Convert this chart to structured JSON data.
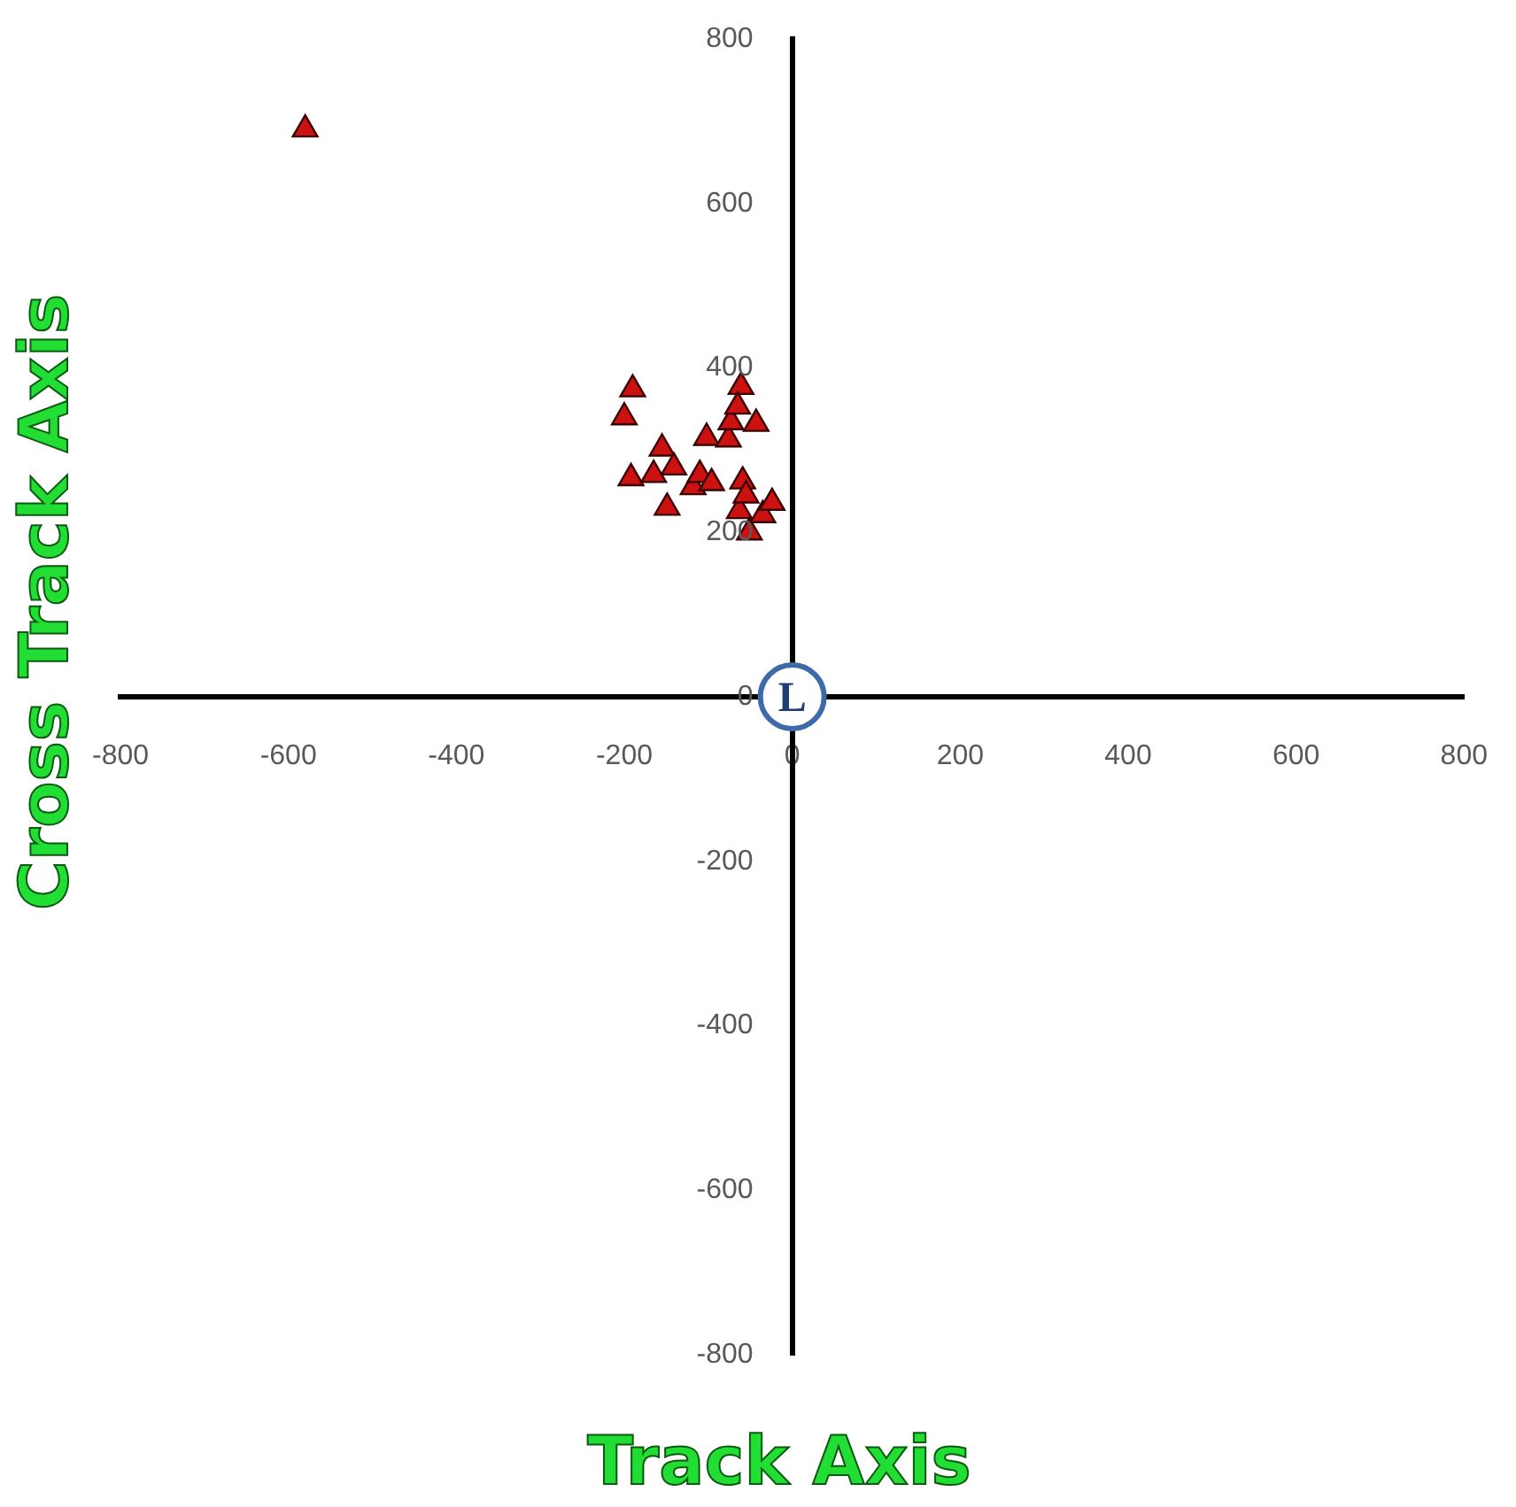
{
  "chart_data": {
    "type": "scatter",
    "xlabel": "Track Axis",
    "ylabel": "Cross Track Axis",
    "x": [
      -580,
      -190,
      -200,
      -192,
      -155,
      -165,
      -149,
      -141,
      -118,
      -110,
      -102,
      -96,
      -76,
      -73,
      -61,
      -65,
      -43,
      -59,
      -63,
      -51,
      -35,
      -24,
      -55
    ],
    "series": [
      {
        "color": "#cc1111",
        "values": [
          690,
          374,
          340,
          266,
          302,
          270,
          230,
          279,
          255,
          270,
          315,
          260,
          313,
          334,
          377,
          353,
          332,
          262,
          226,
          200,
          221,
          236,
          245
        ]
      }
    ],
    "xlim": [
      -800,
      800
    ],
    "ylim": [
      -800,
      800
    ],
    "xticks": [
      -800,
      -600,
      -400,
      -200,
      0,
      200,
      400,
      600,
      800
    ],
    "yticks": [
      -800,
      -600,
      -400,
      -200,
      0,
      200,
      400,
      600,
      800
    ],
    "marker": "triangle",
    "annotations": [
      "L"
    ]
  }
}
